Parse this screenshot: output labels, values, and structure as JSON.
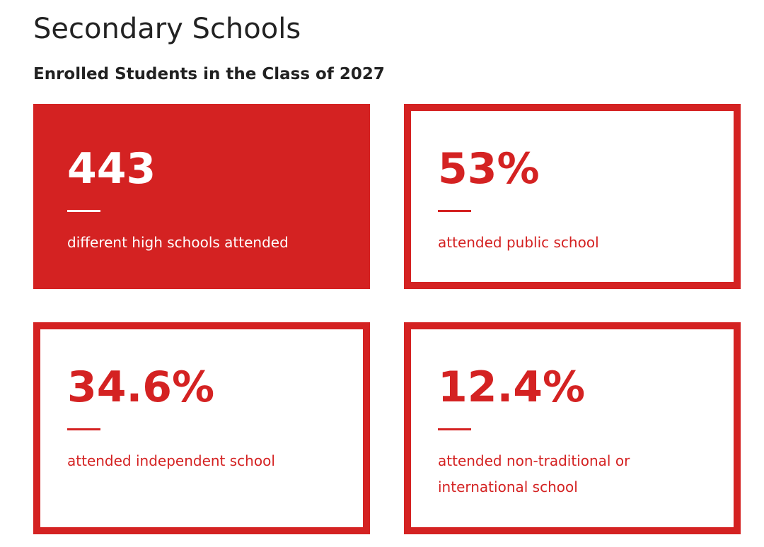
{
  "title": "Secondary Schools",
  "subtitle": "Enrolled Students in the Class of 2027",
  "accent_color": "#d42222",
  "stats": [
    {
      "value": "443",
      "label": "different high schools attended"
    },
    {
      "value": "53%",
      "label": "attended public school"
    },
    {
      "value": "34.6%",
      "label": "attended independent school"
    },
    {
      "value": "12.4%",
      "label": "attended non-traditional or international school"
    }
  ]
}
